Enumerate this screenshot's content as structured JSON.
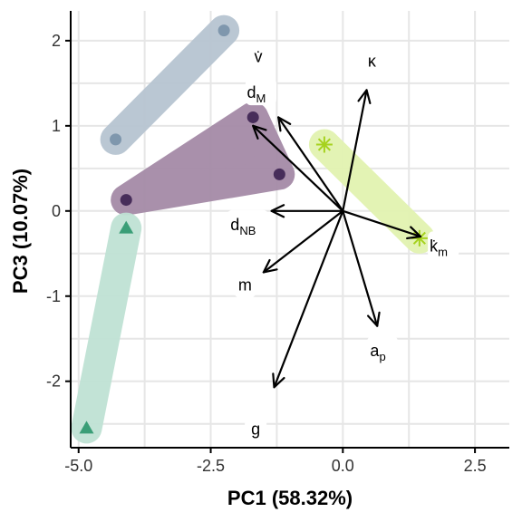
{
  "chart_data": {
    "type": "scatter",
    "title": "",
    "xlabel": "PC1 (58.32%)",
    "ylabel": "PC3 (10.07%)",
    "xlim": [
      -5.15,
      3.15
    ],
    "ylim": [
      -2.78,
      2.35
    ],
    "x_ticks": [
      -5.0,
      -2.5,
      0.0,
      2.5
    ],
    "x_tick_labels": [
      "-5.0",
      "-2.5",
      "0.0",
      "2.5"
    ],
    "y_ticks": [
      -2,
      -1,
      0,
      1,
      2
    ],
    "y_tick_labels": [
      "-2",
      "-1",
      "0",
      "1",
      "2"
    ],
    "grid": true,
    "legend": "none",
    "groups": [
      {
        "color": "#7f97ad",
        "fill": "#b6c4d1",
        "marker": "circle",
        "points": [
          [
            -2.25,
            2.12
          ],
          [
            -4.3,
            0.84
          ]
        ]
      },
      {
        "color": "#472d5a",
        "fill": "#a58ba7",
        "marker": "circle",
        "points": [
          [
            -1.7,
            1.1
          ],
          [
            -1.2,
            0.43
          ],
          [
            -4.1,
            0.13
          ]
        ]
      },
      {
        "color": "#3a9e77",
        "fill": "#bfe2d4",
        "marker": "triangle",
        "points": [
          [
            -4.1,
            -0.2
          ],
          [
            -4.85,
            -2.55
          ]
        ]
      },
      {
        "color": "#a6d21e",
        "fill": "#e2f2b0",
        "marker": "asterisk",
        "points": [
          [
            -0.35,
            0.78
          ],
          [
            1.45,
            -0.32
          ]
        ]
      }
    ],
    "loadings": [
      {
        "label": "v̇",
        "label_sub": "",
        "x": -1.7,
        "y": 1.0,
        "label_x": -1.6,
        "label_y": 1.8
      },
      {
        "label": "κ",
        "label_sub": "",
        "x": 0.45,
        "y": 1.42,
        "label_x": 0.55,
        "label_y": 1.75
      },
      {
        "label": "d",
        "label_sub": "M",
        "x": -1.22,
        "y": 1.1,
        "label_x": -1.55,
        "label_y": 1.38
      },
      {
        "label": "d",
        "label_sub": "NB",
        "x": -1.35,
        "y": 0.0,
        "label_x": -1.8,
        "label_y": -0.17
      },
      {
        "label": "k̇",
        "label_sub": "m",
        "x": 1.47,
        "y": -0.3,
        "label_x": 1.9,
        "label_y": -0.42
      },
      {
        "label": "m",
        "label_sub": "",
        "x": -1.5,
        "y": -0.72,
        "label_x": -1.85,
        "label_y": -0.88
      },
      {
        "label": "a",
        "label_sub": "p",
        "x": 0.65,
        "y": -1.35,
        "label_x": 0.75,
        "label_y": -1.65
      },
      {
        "label": "g",
        "label_sub": "",
        "x": -1.3,
        "y": -2.07,
        "label_x": -1.65,
        "label_y": -2.57
      }
    ]
  }
}
